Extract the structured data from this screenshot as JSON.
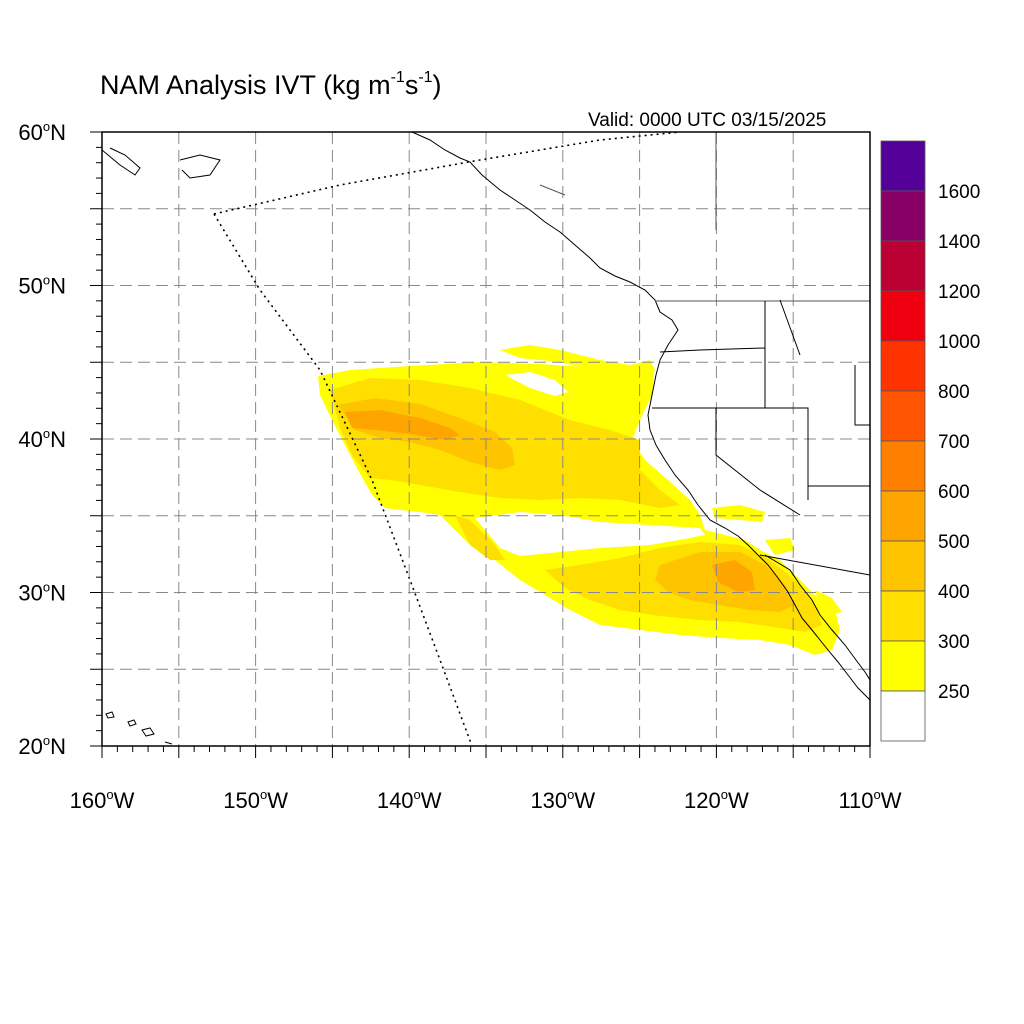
{
  "map": {
    "title_main": "NAM Analysis IVT (kg m",
    "title_exp1": "-1",
    "title_mid": "s",
    "title_exp2": "-1",
    "title_end": ")",
    "valid_time": "Valid: 0000 UTC 03/15/2025",
    "lat_labels": [
      {
        "num": "60",
        "deg": "o",
        "hemi": "N"
      },
      {
        "num": "50",
        "deg": "o",
        "hemi": "N"
      },
      {
        "num": "40",
        "deg": "o",
        "hemi": "N"
      },
      {
        "num": "30",
        "deg": "o",
        "hemi": "N"
      },
      {
        "num": "20",
        "deg": "o",
        "hemi": "N"
      }
    ],
    "lon_labels": [
      {
        "num": "160",
        "deg": "o",
        "hemi": "W"
      },
      {
        "num": "150",
        "deg": "o",
        "hemi": "W"
      },
      {
        "num": "140",
        "deg": "o",
        "hemi": "W"
      },
      {
        "num": "130",
        "deg": "o",
        "hemi": "W"
      },
      {
        "num": "120",
        "deg": "o",
        "hemi": "W"
      },
      {
        "num": "110",
        "deg": "o",
        "hemi": "W"
      }
    ],
    "extent": {
      "lon_min": -160,
      "lon_max": -110,
      "lat_min": 20,
      "lat_max": 60
    }
  },
  "colorbar": {
    "labels": [
      "1600",
      "1400",
      "1200",
      "1000",
      "800",
      "700",
      "600",
      "500",
      "400",
      "300",
      "250"
    ],
    "colors": [
      "#550099",
      "#880066",
      "#bb0033",
      "#ee0011",
      "#ff3300",
      "#ff5500",
      "#ff7f00",
      "#ffa500",
      "#ffc400",
      "#ffdf00",
      "#ffff00",
      "#ffffff"
    ]
  },
  "ivt_colors": {
    "c250": "#ffff00",
    "c300": "#ffdf00",
    "c400": "#ffc400",
    "c500": "#ffa500"
  }
}
